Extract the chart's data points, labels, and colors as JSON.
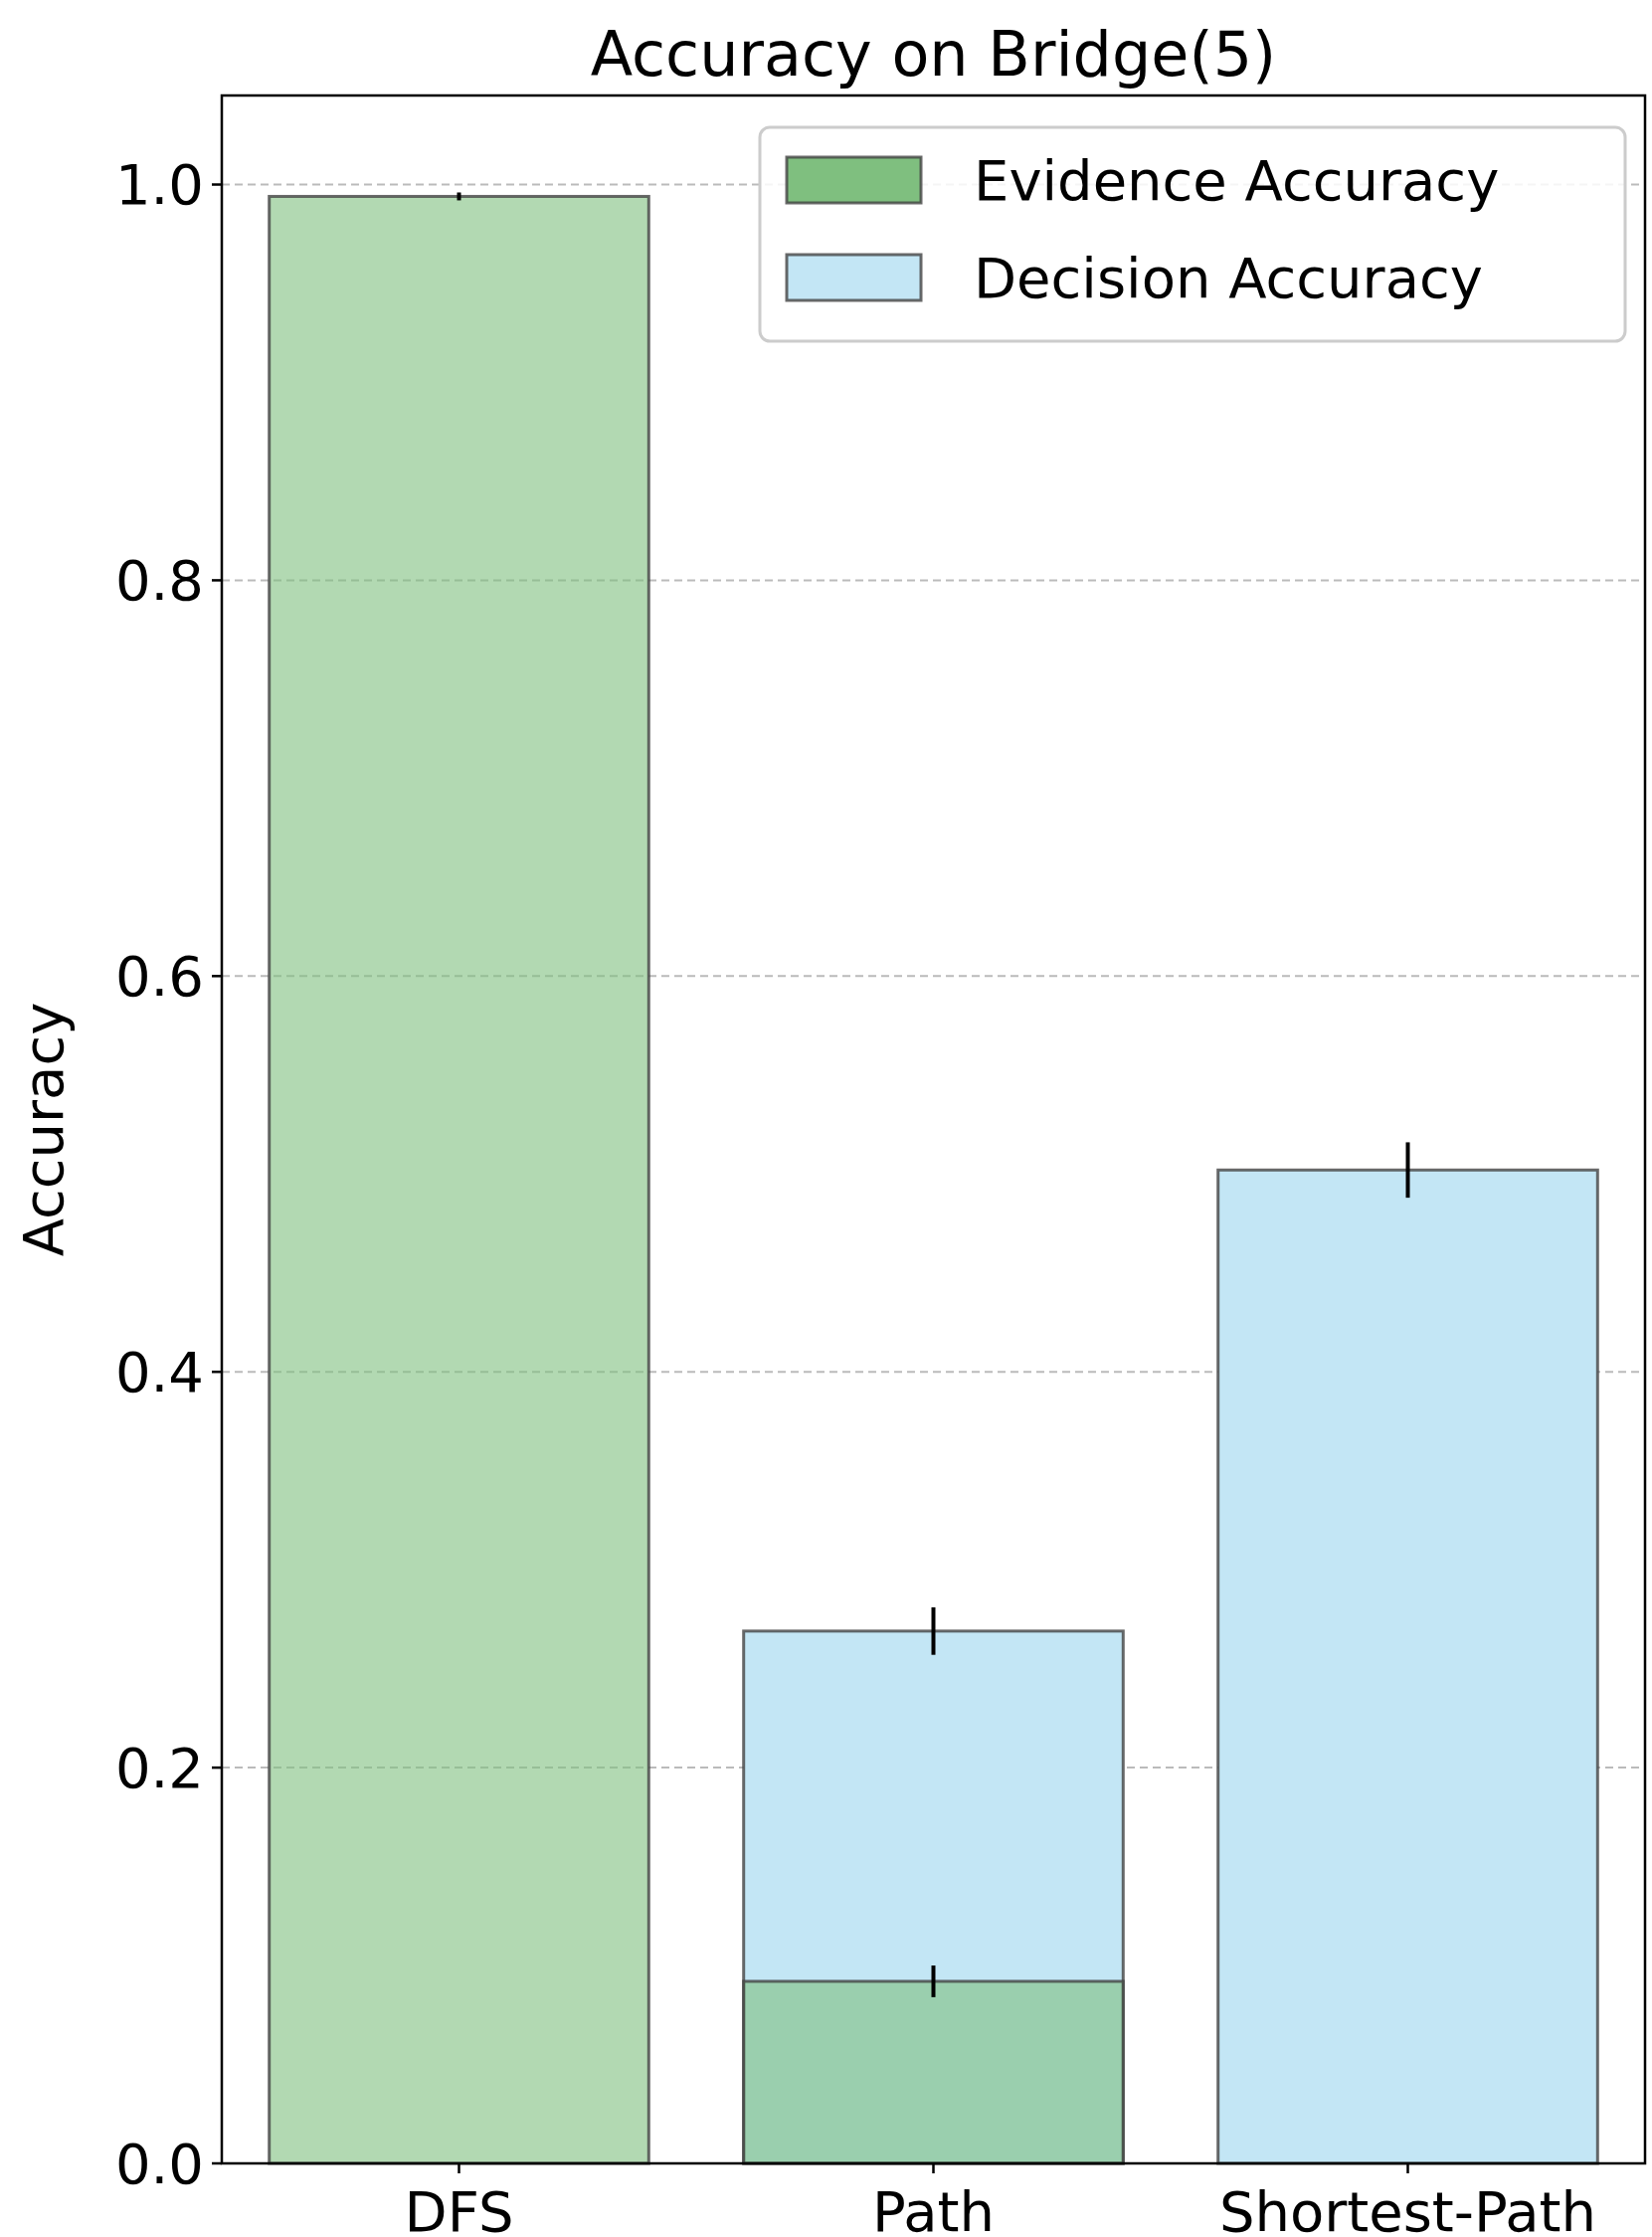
{
  "chart_data": {
    "type": "bar",
    "title": "Accuracy on Bridge(5)",
    "ylabel": "Accuracy",
    "categories": [
      "DFS",
      "Path",
      "Shortest-Path"
    ],
    "series": [
      {
        "name": "Evidence Accuracy",
        "color": "#7fbf7f",
        "values": [
          0.994,
          0.092,
          null
        ],
        "errors": [
          0.002,
          0.008,
          null
        ]
      },
      {
        "name": "Decision Accuracy",
        "color": "#c3e6f5",
        "values": [
          null,
          0.269,
          0.502
        ],
        "errors": [
          null,
          0.012,
          0.014
        ]
      }
    ],
    "ylim": [
      0,
      1.045
    ],
    "yticks": [
      {
        "value": 0,
        "label": "0.0"
      },
      0.2,
      0.4,
      0.6,
      0.8,
      {
        "value": 1,
        "label": "1.0"
      }
    ],
    "grid": "y",
    "legend": "top right"
  }
}
